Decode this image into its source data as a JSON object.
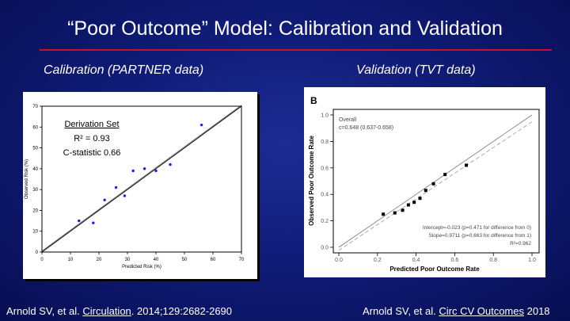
{
  "slide": {
    "title": "“Poor Outcome” Model: Calibration and Validation",
    "left_heading": "Calibration (PARTNER data)",
    "right_heading": "Validation (TVT data)",
    "left_citation": {
      "prefix": "Arnold SV, et al. ",
      "journal": "Circulation",
      "suffix": ". 2014;129:2682-2690"
    },
    "right_citation": {
      "prefix": "Arnold SV, et al. ",
      "journal": "Circ CV Outcomes",
      "suffix": " 2018"
    },
    "accent_color": "#c8102e",
    "background_color": "#101c78"
  },
  "chart_data": [
    {
      "type": "scatter",
      "title": "",
      "xlabel": "Predicted Risk (%)",
      "ylabel": "Observed Risk (%)",
      "xlim": [
        0,
        70
      ],
      "ylim": [
        0,
        70
      ],
      "xticks": [
        "0",
        "10",
        "20",
        "30",
        "40",
        "50",
        "60",
        "70"
      ],
      "yticks": [
        "0",
        "10",
        "20",
        "30",
        "40",
        "50",
        "60",
        "70"
      ],
      "annotation": [
        "Derivation Set",
        "R² = 0.93",
        "C-statistic 0.66"
      ],
      "x": [
        13,
        18,
        22,
        26,
        29,
        32,
        36,
        40,
        45,
        56
      ],
      "y": [
        15,
        14,
        25,
        31,
        27,
        39,
        40,
        39,
        42,
        61
      ],
      "reference_line": "identity",
      "fit_line": [
        [
          0,
          0.5
        ],
        [
          70,
          70.5
        ]
      ],
      "marker_color": "#1a1aff"
    },
    {
      "type": "scatter",
      "panel_label": "B",
      "xlabel": "Predicted Poor Outcome Rate",
      "ylabel": "Observed Poor Outcome Rate",
      "xlim": [
        0,
        1.0
      ],
      "ylim": [
        0,
        1.0
      ],
      "xticks": [
        "0.0",
        "0.2",
        "0.4",
        "0.6",
        "0.8",
        "1.0"
      ],
      "yticks": [
        "0.0",
        "0.2",
        "0.4",
        "0.6",
        "0.8",
        "1.0"
      ],
      "overall_label": [
        "Overall",
        "c=0.648 (0.637-0.658)"
      ],
      "stats": [
        "Intercept=-0.023 (p=0.471 for difference from 0)",
        "Slope=0.9711 (p=0.663 for difference from 1)",
        "R²=0.962"
      ],
      "x": [
        0.23,
        0.29,
        0.33,
        0.36,
        0.39,
        0.42,
        0.45,
        0.49,
        0.55,
        0.66
      ],
      "y": [
        0.25,
        0.26,
        0.28,
        0.32,
        0.34,
        0.37,
        0.43,
        0.48,
        0.55,
        0.62
      ],
      "reference_line": "identity",
      "fit_line": [
        [
          0,
          -0.023
        ],
        [
          1.0,
          0.948
        ]
      ],
      "marker_color": "#000000"
    }
  ]
}
